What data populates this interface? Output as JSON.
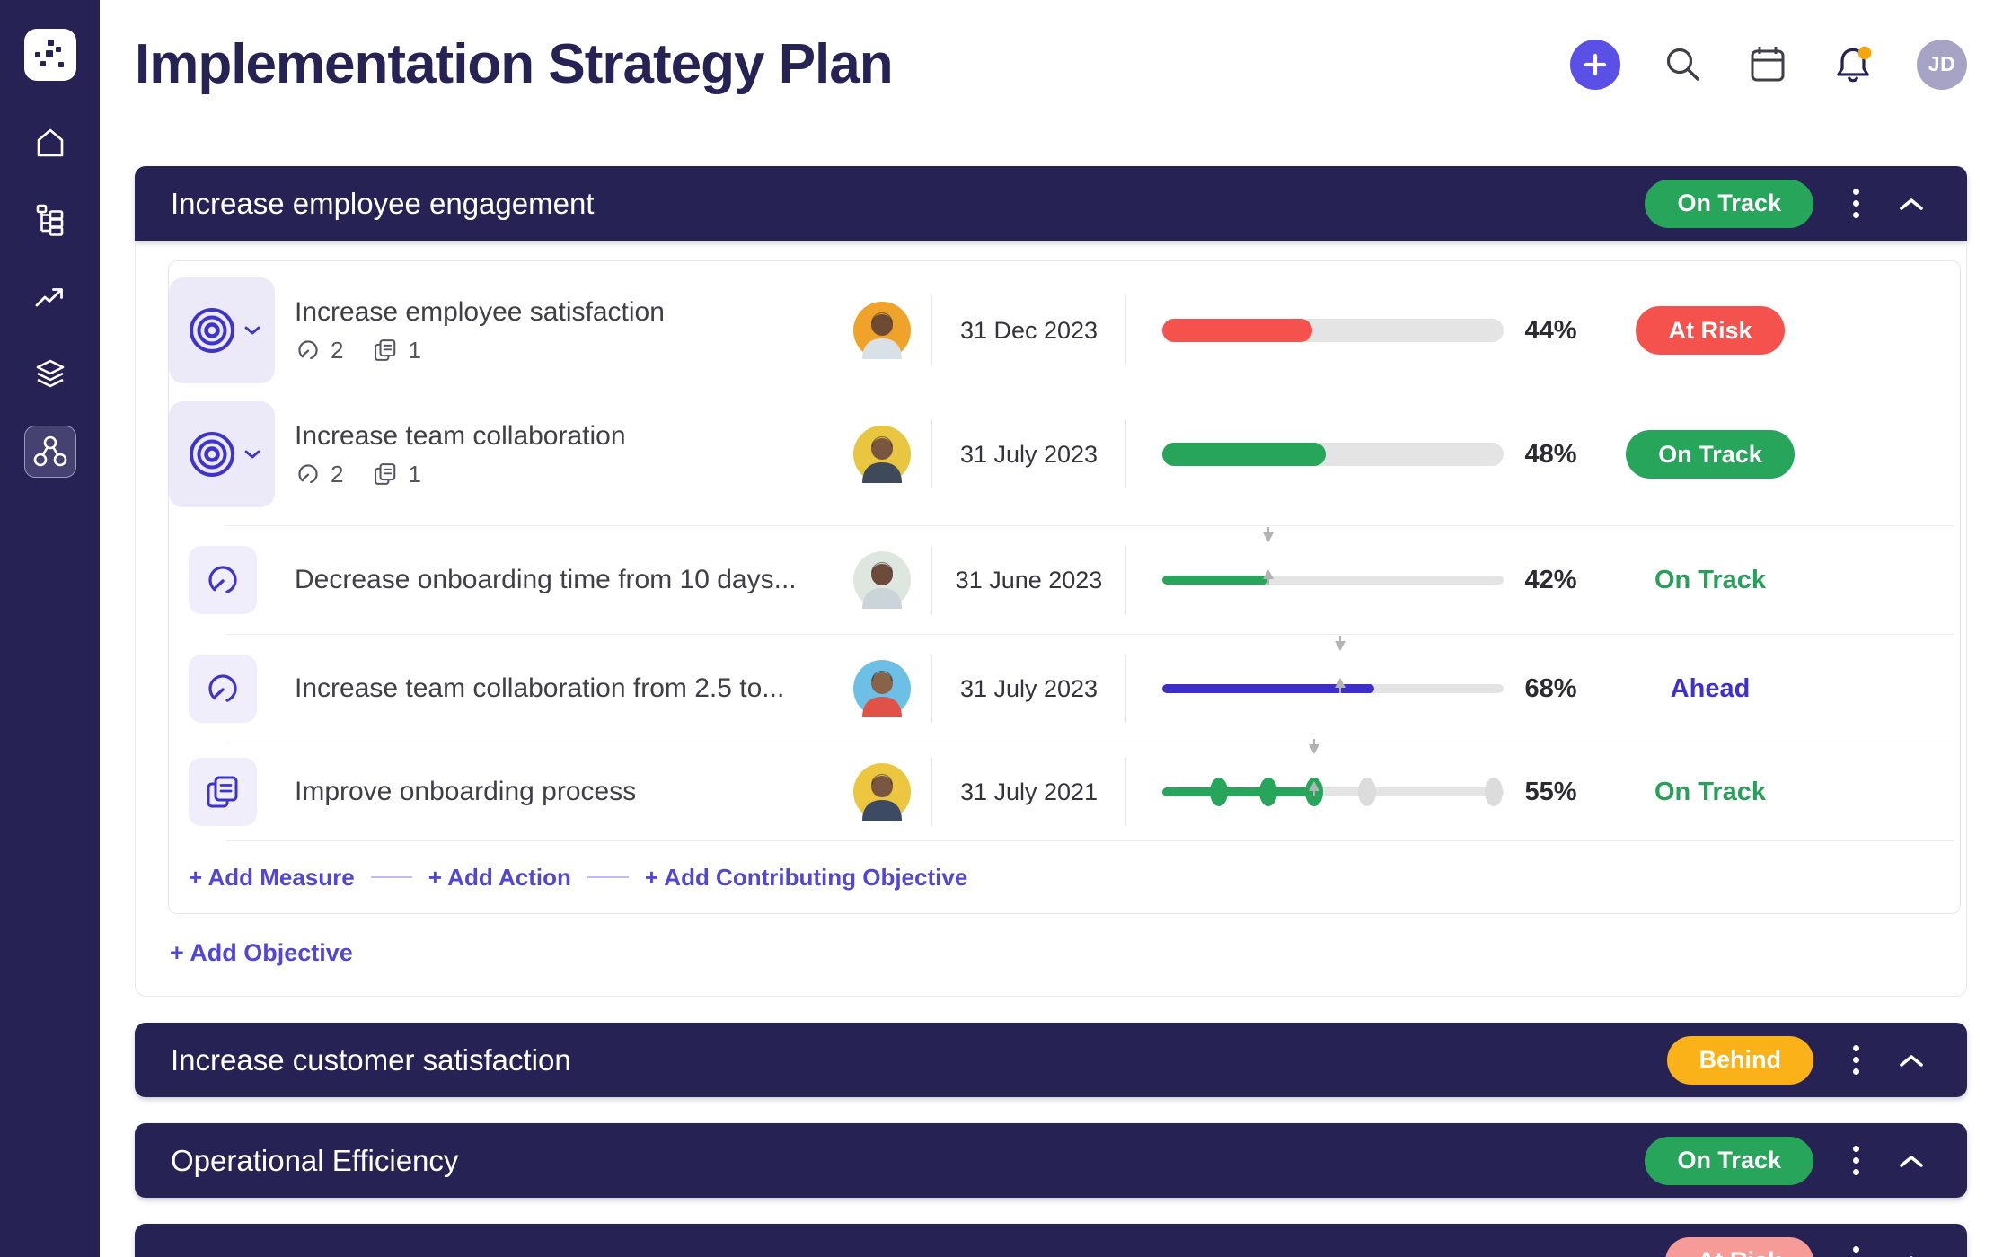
{
  "app_title": "Implementation Strategy Plan",
  "topbar": {
    "avatar_initials": "JD"
  },
  "sidebar": {
    "logo": "cascade-logo",
    "items": [
      {
        "name": "home",
        "active": false
      },
      {
        "name": "plan",
        "active": false
      },
      {
        "name": "trends",
        "active": false
      },
      {
        "name": "layers",
        "active": false
      },
      {
        "name": "network",
        "active": true
      }
    ]
  },
  "colors": {
    "navy": "#272254",
    "green": "#27A65B",
    "red": "#F5514D",
    "amber": "#FBB118",
    "pink": "#F79B99",
    "indigo_bar": "#3D2ECC",
    "indigo_text": "#3E2FD1",
    "green_text": "#27A05A",
    "accent": "#5B50E5",
    "link": "#5246D6",
    "bell_dot": "#F5A60A",
    "track": "#E4E4E4",
    "marker": "#B3B3B3",
    "icon_indigo": "#3E34CB",
    "icon_gray": "#55555E",
    "topbar_avatar_bg": "#A7A3C5"
  },
  "sections": [
    {
      "title": "Increase employee engagement",
      "status": {
        "label": "On Track",
        "style": "green"
      },
      "rows": [
        {
          "kind": "objective",
          "icon": "target",
          "title": "Increase employee satisfaction",
          "measure_count": "2",
          "action_count": "1",
          "due": "31 Dec 2023",
          "percent": "44%",
          "bar": "thick",
          "bar_color": "red",
          "fill": 44,
          "status": {
            "label": "At Risk",
            "style": "badge-red"
          },
          "avatar": {
            "bg": "#F0A32B",
            "shirt": "#D8E0E8",
            "skin": "#6E4A35"
          }
        },
        {
          "kind": "objective",
          "icon": "target",
          "title": "Increase team collaboration",
          "measure_count": "2",
          "action_count": "1",
          "due": "31 July 2023",
          "percent": "48%",
          "bar": "thick",
          "bar_color": "green",
          "fill": 48,
          "status": {
            "label": "On Track",
            "style": "badge-green"
          },
          "avatar": {
            "bg": "#E8C63F",
            "shirt": "#3E4A5A",
            "skin": "#7A5640"
          }
        },
        {
          "kind": "measure",
          "icon": "gauge",
          "title": "Decrease onboarding time from 10 days...",
          "due": "31 June 2023",
          "percent": "42%",
          "bar": "thin",
          "bar_color": "green",
          "fill": 31,
          "marker": 31,
          "status": {
            "label": "On Track",
            "style": "text-green"
          },
          "avatar": {
            "bg": "#DEE7DF",
            "shirt": "#CBD4D8",
            "skin": "#6E4A3A"
          }
        },
        {
          "kind": "measure",
          "icon": "gauge",
          "title": "Increase team collaboration from 2.5 to...",
          "due": "31 July 2023",
          "percent": "68%",
          "bar": "thin",
          "bar_color": "indigo",
          "fill": 62,
          "marker": 52,
          "status": {
            "label": "Ahead",
            "style": "text-indigo"
          },
          "avatar": {
            "bg": "#6CC0E5",
            "shirt": "#E05248",
            "skin": "#8A6248"
          }
        },
        {
          "kind": "action",
          "icon": "copy",
          "title": "Improve onboarding process",
          "due": "31 July 2021",
          "percent": "55%",
          "bar": "milestones",
          "bar_color": "green",
          "fill": 44.5,
          "marker": 44.5,
          "milestone_dots": [
            16.5,
            31,
            44.5,
            60,
            97
          ],
          "milestones_done": 3,
          "status": {
            "label": "On Track",
            "style": "text-green"
          },
          "avatar": {
            "bg": "#EDC63F",
            "shirt": "#3C4B63",
            "skin": "#7A5640"
          }
        }
      ],
      "footer_links": [
        {
          "label": "+ Add Measure"
        },
        {
          "label": "+ Add Action"
        },
        {
          "label": "+ Add Contributing Objective"
        }
      ],
      "add_objective_label": "+ Add Objective"
    },
    {
      "title": "Increase customer satisfaction",
      "status": {
        "label": "Behind",
        "style": "amber"
      }
    },
    {
      "title": "Operational Efficiency",
      "status": {
        "label": "On Track",
        "style": "green"
      }
    },
    {
      "title": "",
      "status": {
        "label": "At Risk",
        "style": "pink"
      }
    }
  ]
}
